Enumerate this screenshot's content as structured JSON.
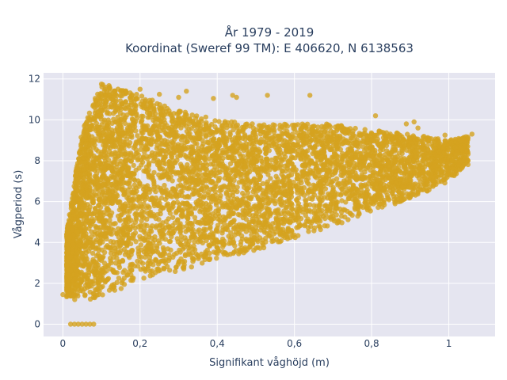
{
  "chart_data": {
    "type": "scatter",
    "title_lines": [
      "År 1979 - 2019",
      "Koordinat (Sweref 99 TM): E 406620, N 6138563"
    ],
    "xlabel": "Signifikant våghöjd (m)",
    "ylabel": "Vågperiod (s)",
    "xlim": [
      -0.05,
      1.12
    ],
    "ylim": [
      -0.6,
      12.3
    ],
    "x_ticks": [
      0,
      0.2,
      0.4,
      0.6,
      0.8,
      1
    ],
    "x_tick_labels": [
      "0",
      "0,2",
      "0,4",
      "0,6",
      "0,8",
      "1"
    ],
    "y_ticks": [
      0,
      2,
      4,
      6,
      8,
      10,
      12
    ],
    "y_tick_labels": [
      "0",
      "2",
      "4",
      "6",
      "8",
      "10",
      "12"
    ],
    "grid": true,
    "legend": false,
    "point_color": "#d4a21f",
    "plot_bg": "#e5e5f0",
    "grid_color": "#ffffff",
    "series": [
      {
        "density_envelope": {
          "x": [
            0.01,
            0.05,
            0.1,
            0.2,
            0.3,
            0.4,
            0.5,
            0.6,
            0.7,
            0.8,
            0.9,
            1.0,
            1.05
          ],
          "y_min": [
            1.3,
            1.1,
            1.2,
            2.2,
            2.6,
            3.2,
            3.6,
            4.2,
            4.8,
            5.5,
            6.1,
            7.0,
            7.8
          ],
          "y_max": [
            4.5,
            9.5,
            11.8,
            11.2,
            10.5,
            10.0,
            9.8,
            9.8,
            9.8,
            9.5,
            9.3,
            9.0,
            9.2
          ]
        },
        "point_count": 6000,
        "extra_points": [
          {
            "x": 0.02,
            "y": 0
          },
          {
            "x": 0.03,
            "y": 0
          },
          {
            "x": 0.04,
            "y": 0
          },
          {
            "x": 0.05,
            "y": 0
          },
          {
            "x": 0.06,
            "y": 0
          },
          {
            "x": 0.07,
            "y": 0
          },
          {
            "x": 0.08,
            "y": 0
          },
          {
            "x": 0.0,
            "y": 1.45
          },
          {
            "x": 0.1,
            "y": 11.75
          },
          {
            "x": 0.11,
            "y": 11.6
          },
          {
            "x": 0.13,
            "y": 11.3
          },
          {
            "x": 0.15,
            "y": 11.4
          },
          {
            "x": 0.2,
            "y": 11.5
          },
          {
            "x": 0.25,
            "y": 11.25
          },
          {
            "x": 0.3,
            "y": 11.1
          },
          {
            "x": 0.32,
            "y": 11.4
          },
          {
            "x": 0.39,
            "y": 11.05
          },
          {
            "x": 0.44,
            "y": 11.2
          },
          {
            "x": 0.45,
            "y": 11.1
          },
          {
            "x": 0.53,
            "y": 11.2
          },
          {
            "x": 0.64,
            "y": 11.2
          },
          {
            "x": 0.81,
            "y": 10.2
          },
          {
            "x": 0.89,
            "y": 9.8
          },
          {
            "x": 0.91,
            "y": 9.9
          },
          {
            "x": 0.92,
            "y": 9.6
          },
          {
            "x": 1.03,
            "y": 9.0
          },
          {
            "x": 1.06,
            "y": 9.3
          },
          {
            "x": 1.04,
            "y": 8.7
          },
          {
            "x": 0.99,
            "y": 9.25
          }
        ]
      }
    ]
  }
}
